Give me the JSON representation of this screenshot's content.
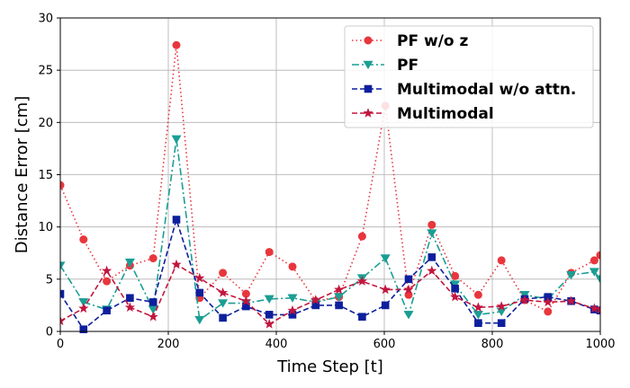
{
  "chart_data": {
    "type": "line",
    "title": "",
    "xlabel": "Time Step [t]",
    "ylabel": "Distance Error [cm]",
    "xlim": [
      0,
      1000
    ],
    "ylim": [
      0,
      30
    ],
    "xticks": [
      0,
      200,
      400,
      600,
      800,
      1000
    ],
    "yticks": [
      0,
      5,
      10,
      15,
      20,
      25,
      30
    ],
    "grid": true,
    "legend_position": "top-right",
    "series": [
      {
        "name": "PF w/o z",
        "color": "#e8363d",
        "style": "dotted",
        "marker": "circle",
        "x": [
          0,
          43,
          86,
          129,
          172,
          215,
          258,
          301,
          344,
          387,
          430,
          473,
          516,
          559,
          602,
          645,
          688,
          731,
          774,
          817,
          860,
          903,
          946,
          989,
          1000
        ],
        "y": [
          14.0,
          8.8,
          4.8,
          6.3,
          7.0,
          27.4,
          3.2,
          5.6,
          3.6,
          7.6,
          6.2,
          2.9,
          3.3,
          9.1,
          21.6,
          3.5,
          10.2,
          5.3,
          3.5,
          6.8,
          3.0,
          1.9,
          5.6,
          6.8,
          7.3
        ]
      },
      {
        "name": "PF",
        "color": "#1a9e94",
        "style": "dashdot",
        "marker": "triangle-down",
        "x": [
          0,
          43,
          86,
          129,
          172,
          215,
          258,
          301,
          344,
          387,
          430,
          473,
          516,
          559,
          602,
          645,
          688,
          731,
          774,
          817,
          860,
          903,
          946,
          989,
          1000
        ],
        "y": [
          6.3,
          2.8,
          2.1,
          6.6,
          2.1,
          18.4,
          1.1,
          2.7,
          2.7,
          3.1,
          3.2,
          2.8,
          3.3,
          5.1,
          7.0,
          1.6,
          9.4,
          4.5,
          1.6,
          1.9,
          3.5,
          3.1,
          5.4,
          5.7,
          5.0
        ]
      },
      {
        "name": "Multimodal w/o attn.",
        "color": "#0d1f9c",
        "style": "dashed",
        "marker": "square",
        "x": [
          0,
          43,
          86,
          129,
          172,
          215,
          258,
          301,
          344,
          387,
          430,
          473,
          516,
          559,
          602,
          645,
          688,
          731,
          774,
          817,
          860,
          903,
          946,
          989,
          1000
        ],
        "y": [
          3.6,
          0.2,
          2.0,
          3.2,
          2.8,
          10.7,
          3.7,
          1.3,
          2.4,
          1.6,
          1.6,
          2.5,
          2.5,
          1.4,
          2.5,
          5.0,
          7.1,
          4.1,
          0.8,
          0.8,
          3.1,
          3.3,
          2.9,
          2.1,
          2.0
        ]
      },
      {
        "name": "Multimodal",
        "color": "#c2163e",
        "style": "dashed",
        "marker": "star",
        "x": [
          0,
          43,
          86,
          129,
          172,
          215,
          258,
          301,
          344,
          387,
          430,
          473,
          516,
          559,
          602,
          645,
          688,
          731,
          774,
          817,
          860,
          903,
          946,
          989,
          1000
        ],
        "y": [
          1.0,
          2.2,
          5.8,
          2.3,
          1.4,
          6.4,
          5.1,
          3.7,
          2.9,
          0.7,
          2.0,
          3.0,
          4.0,
          4.8,
          4.0,
          4.0,
          5.8,
          3.3,
          2.3,
          2.4,
          3.0,
          2.8,
          2.9,
          2.2,
          2.1
        ]
      }
    ]
  }
}
